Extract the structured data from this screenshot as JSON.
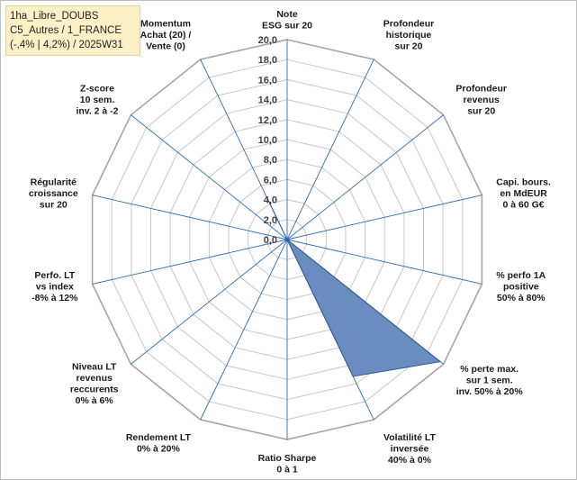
{
  "title_box": {
    "line1": "1ha_Libre_DOUBS",
    "line2": "C5_Autres / 1_FRANCE",
    "line3": "(-,4% | 4,2%) / 2025W31"
  },
  "chart_data": {
    "type": "radar",
    "rmax": 20,
    "ticks": [
      0,
      2,
      4,
      6,
      8,
      10,
      12,
      14,
      16,
      18,
      20
    ],
    "tick_labels": [
      "0,0",
      "2,0",
      "4,0",
      "6,0",
      "8,0",
      "10,0",
      "12,0",
      "14,0",
      "16,0",
      "18,0",
      "20,0"
    ],
    "axes": [
      [
        "Note",
        "ESG sur 20"
      ],
      [
        "Profondeur",
        "historique",
        "sur 20"
      ],
      [
        "Profondeur",
        "revenus",
        "sur 20"
      ],
      [
        "Capi. bours.",
        "en MdEUR",
        "0 à 60 G€"
      ],
      [
        "% perfo 1A",
        "positive",
        "50% à 80%"
      ],
      [
        "% perte max.",
        "sur 1 sem.",
        "inv. 50% à 20%"
      ],
      [
        "Volatilité LT",
        "inversée",
        "40% à 0%"
      ],
      [
        "Ratio Sharpe",
        "0 à 1"
      ],
      [
        "Rendement LT",
        "0% à 20%"
      ],
      [
        "Niveau LT",
        "revenus",
        "reccurents",
        "0% à 6%"
      ],
      [
        "Perfo. LT",
        "vs index",
        "-8% à 12%"
      ],
      [
        "Régularité",
        "croissance",
        "sur 20"
      ],
      [
        "Z-score",
        "10 sem.",
        "inv. 2 à -2"
      ],
      [
        "Momentum",
        "Achat (20) /",
        "Vente (0)"
      ]
    ],
    "values": [
      0,
      0,
      0,
      0,
      0,
      19.6,
      15.2,
      0,
      0,
      0,
      0,
      0,
      0,
      4.5
    ],
    "colors": {
      "fill": "#5b80b8",
      "stroke": "#2f5597",
      "grid": "#c8c8c8",
      "spoke": "#2f6db5"
    }
  }
}
